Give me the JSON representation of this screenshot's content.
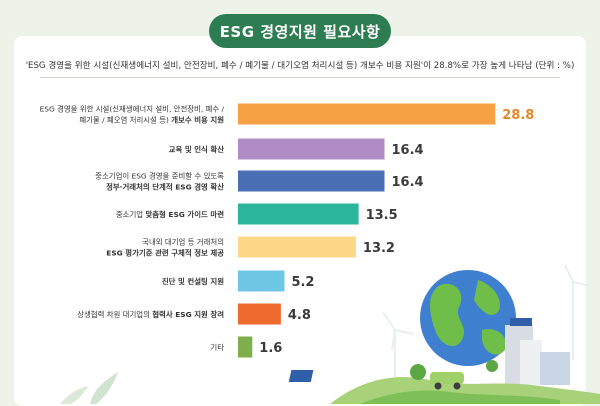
{
  "header": {
    "title": "ESG 경영지원 필요사항",
    "note": "'ESG 경영을 위한 시설(신재생에너지 설비, 안전장비, 폐수 / 폐기물 / 대기오염 처리시설 등) 개보수 비용 지원'이 28.8%로 가장 높게 나타남 (단위 : %)"
  },
  "colors": {
    "title_bg": "#2e7d52",
    "bars": [
      "#f5a144",
      "#b08cc7",
      "#4a6fb5",
      "#2bb59a",
      "#fdd888",
      "#6cc6e4",
      "#ef6a2e",
      "#7fae4c"
    ],
    "highlight_value": "#e8862a"
  },
  "chart_data": {
    "type": "bar",
    "orientation": "horizontal",
    "categories": [
      "ESG 경영을 위한 시설(신재생에너지 설비, 안전장비, 폐수 / 폐기물 / 폐오염 처리시설 등) 개보수 비용 지원",
      "교육 및 인식 확산",
      "중소기업이 ESG 경영을 준비할 수 있도록 정부·거래처의 단계적 ESG 경영 확산",
      "중소기업 맞춤형 ESG 가이드 마련",
      "국내외 대기업 등 거래처의 ESG 평가기준 관련 구체적 정보 제공",
      "진단 및 컨설팅 지원",
      "상생협력 차원 대기업의 협력사 ESG 지원 장려",
      "기타"
    ],
    "label_lines": [
      [
        [
          "ESG 경영을 위한 시설(신재생에너지 설비, 안전장비, 폐수 /",
          false
        ],
        [
          "폐기물 / 폐오염 처리시설 등) ",
          false,
          "개보수 비용 지원",
          true
        ]
      ],
      [
        [
          "교육 및 인식 확산",
          true
        ]
      ],
      [
        [
          "중소기업이 ESG 경영을 준비할 수 있도록",
          false
        ],
        [
          "정부·거래처의 단계적 ESG 경영 확산",
          true
        ]
      ],
      [
        [
          "중소기업 ",
          false,
          "맞춤형 ESG 가이드 마련",
          true
        ]
      ],
      [
        [
          "국내외 대기업 등 거래처의",
          false
        ],
        [
          "ESG 평가기준 관련 구체적 정보 제공",
          true
        ]
      ],
      [
        [
          "진단 및 컨설팅 지원",
          true
        ]
      ],
      [
        [
          "상생협력 차원 대기업의 ",
          false,
          "협력사 ESG 지원 장려",
          true
        ]
      ],
      [
        [
          "기타",
          false
        ]
      ]
    ],
    "values": [
      28.8,
      16.4,
      16.4,
      13.5,
      13.2,
      5.2,
      4.8,
      1.6
    ],
    "value_labels": [
      "28.8",
      "16.4",
      "16.4",
      "13.5",
      "13.2",
      "5.2",
      "4.8",
      "1.6"
    ],
    "unit": "%",
    "xlim": [
      0,
      30
    ],
    "grid": false,
    "legend": "none"
  }
}
